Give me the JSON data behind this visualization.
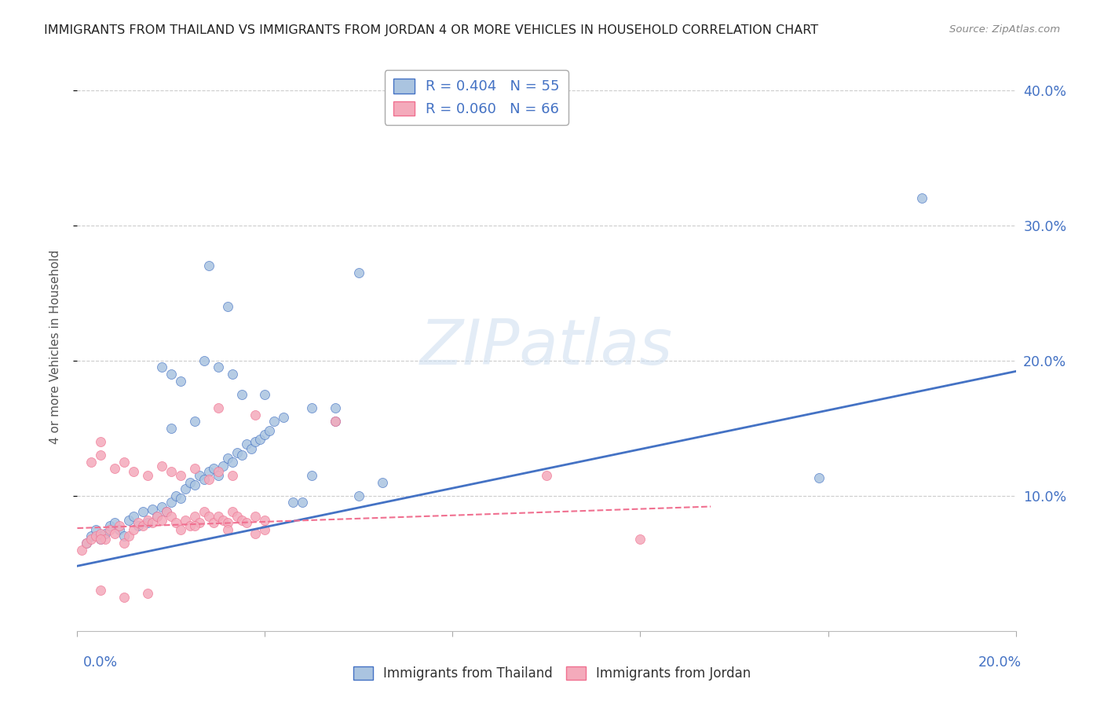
{
  "title": "IMMIGRANTS FROM THAILAND VS IMMIGRANTS FROM JORDAN 4 OR MORE VEHICLES IN HOUSEHOLD CORRELATION CHART",
  "source": "Source: ZipAtlas.com",
  "ylabel": "4 or more Vehicles in Household",
  "xlim": [
    0.0,
    0.2
  ],
  "ylim": [
    0.0,
    0.42
  ],
  "thailand_color": "#aac4e0",
  "jordan_color": "#f4aabb",
  "thailand_line_color": "#4472c4",
  "jordan_line_color": "#f07090",
  "axis_label_color": "#4472c4",
  "grid_color": "#cccccc",
  "background_color": "#ffffff",
  "thailand_scatter_x": [
    0.002,
    0.003,
    0.004,
    0.005,
    0.006,
    0.007,
    0.008,
    0.009,
    0.01,
    0.011,
    0.012,
    0.013,
    0.014,
    0.015,
    0.016,
    0.017,
    0.018,
    0.019,
    0.02,
    0.021,
    0.022,
    0.023,
    0.024,
    0.025,
    0.026,
    0.027,
    0.028,
    0.029,
    0.03,
    0.031,
    0.032,
    0.033,
    0.034,
    0.035,
    0.036,
    0.037,
    0.038,
    0.039,
    0.04,
    0.041,
    0.042,
    0.044,
    0.046,
    0.048,
    0.05,
    0.055,
    0.06,
    0.065,
    0.03,
    0.035,
    0.025,
    0.02,
    0.018,
    0.022,
    0.158,
    0.18
  ],
  "thailand_scatter_y": [
    0.065,
    0.07,
    0.075,
    0.068,
    0.072,
    0.078,
    0.08,
    0.075,
    0.07,
    0.082,
    0.085,
    0.078,
    0.088,
    0.08,
    0.09,
    0.085,
    0.092,
    0.088,
    0.095,
    0.1,
    0.098,
    0.105,
    0.11,
    0.108,
    0.115,
    0.112,
    0.118,
    0.12,
    0.115,
    0.122,
    0.128,
    0.125,
    0.132,
    0.13,
    0.138,
    0.135,
    0.14,
    0.142,
    0.145,
    0.148,
    0.155,
    0.158,
    0.095,
    0.095,
    0.115,
    0.165,
    0.1,
    0.11,
    0.195,
    0.175,
    0.155,
    0.15,
    0.195,
    0.185,
    0.113,
    0.32
  ],
  "thailand_scatter_x2": [
    0.028,
    0.032,
    0.04,
    0.05,
    0.027,
    0.033,
    0.02,
    0.055,
    0.06
  ],
  "thailand_scatter_y2": [
    0.27,
    0.24,
    0.175,
    0.165,
    0.2,
    0.19,
    0.19,
    0.155,
    0.265
  ],
  "jordan_scatter_x": [
    0.001,
    0.002,
    0.003,
    0.004,
    0.005,
    0.006,
    0.007,
    0.008,
    0.009,
    0.01,
    0.011,
    0.012,
    0.013,
    0.014,
    0.015,
    0.016,
    0.017,
    0.018,
    0.019,
    0.02,
    0.021,
    0.022,
    0.023,
    0.024,
    0.025,
    0.026,
    0.027,
    0.028,
    0.029,
    0.03,
    0.031,
    0.032,
    0.033,
    0.034,
    0.035,
    0.036,
    0.038,
    0.04,
    0.003,
    0.005,
    0.008,
    0.01,
    0.012,
    0.015,
    0.018,
    0.02,
    0.022,
    0.025,
    0.028,
    0.03,
    0.033,
    0.005,
    0.025,
    0.032,
    0.038,
    0.04,
    0.005,
    0.03,
    0.038,
    0.12,
    0.055,
    0.1,
    0.005,
    0.01,
    0.015
  ],
  "jordan_scatter_y": [
    0.06,
    0.065,
    0.068,
    0.07,
    0.072,
    0.068,
    0.075,
    0.072,
    0.078,
    0.065,
    0.07,
    0.075,
    0.08,
    0.078,
    0.082,
    0.08,
    0.085,
    0.082,
    0.088,
    0.085,
    0.08,
    0.075,
    0.082,
    0.078,
    0.085,
    0.08,
    0.088,
    0.085,
    0.08,
    0.085,
    0.082,
    0.08,
    0.088,
    0.085,
    0.082,
    0.08,
    0.085,
    0.082,
    0.125,
    0.13,
    0.12,
    0.125,
    0.118,
    0.115,
    0.122,
    0.118,
    0.115,
    0.12,
    0.112,
    0.118,
    0.115,
    0.14,
    0.078,
    0.075,
    0.072,
    0.075,
    0.068,
    0.165,
    0.16,
    0.068,
    0.155,
    0.115,
    0.03,
    0.025,
    0.028
  ],
  "thailand_line_x": [
    0.0,
    0.2
  ],
  "thailand_line_y": [
    0.048,
    0.192
  ],
  "jordan_line_x": [
    0.0,
    0.135
  ],
  "jordan_line_y": [
    0.076,
    0.092
  ],
  "yticks": [
    0.1,
    0.2,
    0.3,
    0.4
  ],
  "ytick_labels": [
    "10.0%",
    "20.0%",
    "30.0%",
    "40.0%"
  ],
  "xtick_minor": [
    0.04,
    0.08,
    0.12,
    0.16
  ]
}
